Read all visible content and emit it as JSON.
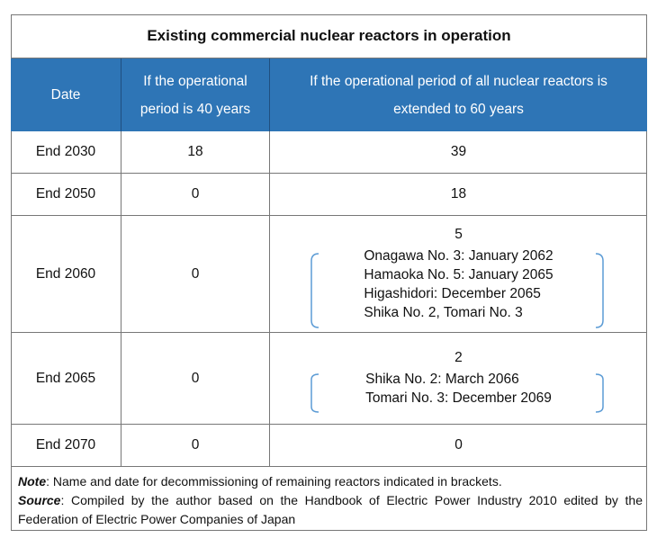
{
  "title": "Existing commercial nuclear reactors in operation",
  "headers": [
    "Date",
    "If the operational period is 40 years",
    "If the operational period of all nuclear reactors is extended to 60 years"
  ],
  "rows": [
    {
      "date": "End 2030",
      "forty": "18",
      "sixty": "39",
      "list": []
    },
    {
      "date": "End 2050",
      "forty": "0",
      "sixty": "18",
      "list": []
    },
    {
      "date": "End 2060",
      "forty": "0",
      "sixty": "5",
      "list": [
        "Onagawa No. 3: January 2062",
        "Hamaoka No. 5: January 2065",
        "Higashidori: December 2065",
        "Shika No. 2, Tomari No. 3"
      ]
    },
    {
      "date": "End 2065",
      "forty": "0",
      "sixty": "2",
      "list": [
        "Shika No. 2: March 2066",
        "Tomari No. 3: December 2069"
      ]
    },
    {
      "date": "End 2070",
      "forty": "0",
      "sixty": "0",
      "list": []
    }
  ],
  "note_label": "Note",
  "note_text": ": Name and date for decommissioning of remaining reactors indicated in brackets.",
  "source_label": "Source",
  "source_text": ": Compiled by the author based on the Handbook of Electric Power Industry 2010 edited by the Federation of Electric Power Companies of Japan",
  "colors": {
    "header": "#2E75B6",
    "bracket": "#5B9BD5"
  }
}
